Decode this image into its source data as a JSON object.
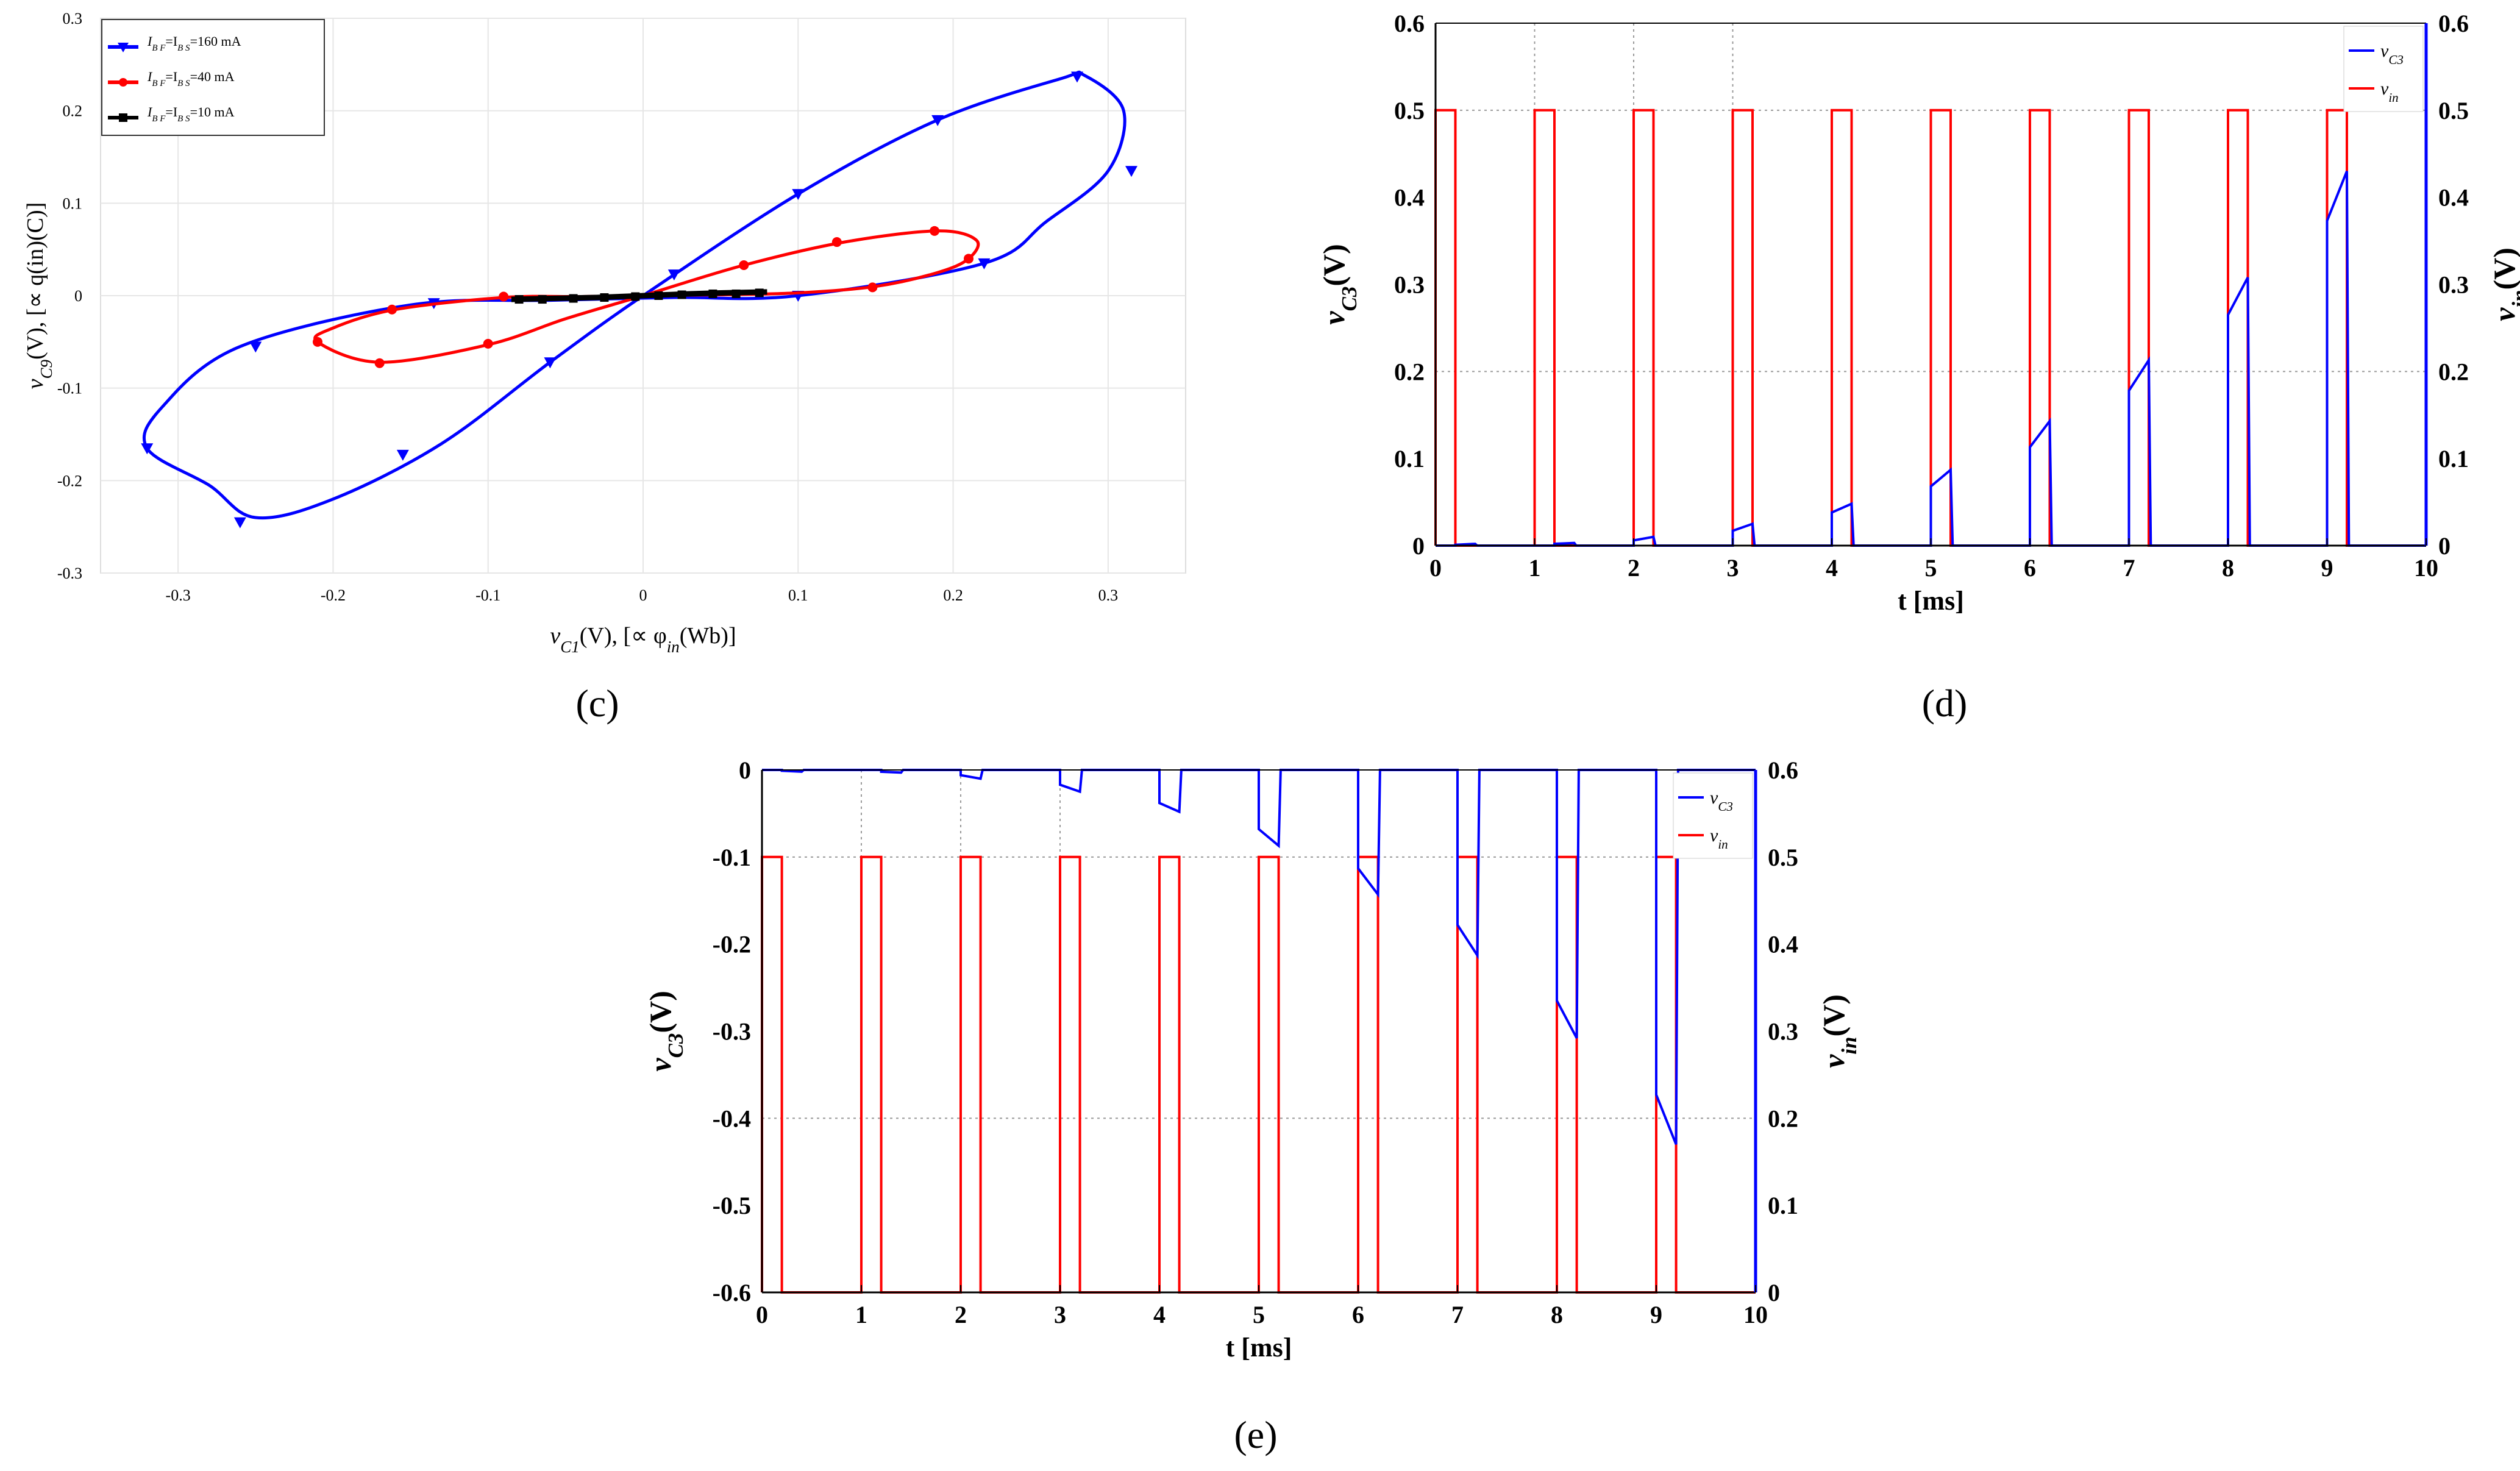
{
  "figure": {
    "panels": [
      {
        "caption": "(c)"
      },
      {
        "caption": "(d)"
      },
      {
        "caption": "(e)"
      }
    ]
  },
  "chart_data": [
    {
      "panel": "c",
      "type": "line",
      "xlabel_parts": [
        "v",
        "C1",
        "(V), [∝ φ",
        "in",
        "(Wb)]"
      ],
      "ylabel_parts": [
        "v",
        "C9",
        "(V), [∝ q(in)(C)]"
      ],
      "xlim": [
        -0.35,
        0.35
      ],
      "ylim": [
        -0.3,
        0.3
      ],
      "xticks": [
        -0.3,
        -0.2,
        -0.1,
        0,
        0.1,
        0.2,
        0.3
      ],
      "xtick_labels": [
        "-0.3",
        "-0.2",
        "-0.1",
        "0",
        "0.1",
        "0.2",
        "0.3"
      ],
      "yticks": [
        -0.3,
        -0.2,
        -0.1,
        0,
        0.1,
        0.2,
        0.3
      ],
      "ytick_labels": [
        "-0.3",
        "-0.2",
        "-0.1",
        "0",
        "0.1",
        "0.2",
        "0.3"
      ],
      "grid": true,
      "legend_position": "top-left",
      "series": [
        {
          "name_parts": [
            "I",
            "B F",
            "=I",
            "B S",
            "=160 mA"
          ],
          "color": "#0000ff",
          "marker": "triangle-down",
          "x": [
            0,
            0.1,
            0.19,
            0.27,
            0.285,
            0.31,
            0.3,
            0.26,
            0.22,
            0.1,
            0.02,
            -0.06,
            -0.15,
            -0.26,
            -0.31,
            -0.32,
            -0.28,
            -0.25,
            -0.2,
            -0.13,
            -0.06,
            0
          ],
          "y": [
            0,
            0.11,
            0.19,
            0.235,
            0.238,
            0.2,
            0.135,
            0.08,
            0.035,
            0,
            -0.002,
            -0.005,
            -0.01,
            -0.055,
            -0.12,
            -0.165,
            -0.205,
            -0.24,
            -0.22,
            -0.16,
            -0.072,
            0
          ],
          "marker_points": [
            [
              0.1,
              0.11
            ],
            [
              0.19,
              0.19
            ],
            [
              0.28,
              0.237
            ],
            [
              0.315,
              0.135
            ],
            [
              0.22,
              0.035
            ],
            [
              0.1,
              0.0
            ],
            [
              -0.135,
              -0.008
            ],
            [
              -0.25,
              -0.055
            ],
            [
              -0.32,
              -0.165
            ],
            [
              -0.26,
              -0.245
            ],
            [
              -0.155,
              -0.172
            ],
            [
              -0.06,
              -0.072
            ],
            [
              0.02,
              0.023
            ]
          ]
        },
        {
          "name_parts": [
            "I",
            "B F",
            "=I",
            "B S",
            "=40 mA"
          ],
          "color": "#ff0000",
          "marker": "circle",
          "x": [
            0,
            0.065,
            0.13,
            0.19,
            0.215,
            0.21,
            0.19,
            0.15,
            0.1,
            0.05,
            0,
            -0.04,
            -0.09,
            -0.16,
            -0.2,
            -0.21,
            -0.17,
            -0.1,
            -0.05,
            0
          ],
          "y": [
            0,
            0.033,
            0.058,
            0.07,
            0.06,
            0.04,
            0.025,
            0.01,
            0.003,
            0.001,
            0,
            -0.001,
            -0.002,
            -0.015,
            -0.035,
            -0.05,
            -0.072,
            -0.053,
            -0.025,
            0
          ],
          "marker_points": [
            [
              0.065,
              0.033
            ],
            [
              0.125,
              0.058
            ],
            [
              0.188,
              0.07
            ],
            [
              0.21,
              0.04
            ],
            [
              0.148,
              0.009
            ],
            [
              -0.09,
              -0.001
            ],
            [
              -0.162,
              -0.015
            ],
            [
              -0.21,
              -0.05
            ],
            [
              -0.17,
              -0.073
            ],
            [
              -0.1,
              -0.052
            ]
          ]
        },
        {
          "name_parts": [
            "I",
            "B F",
            "=I",
            "B S",
            "=10 mA"
          ],
          "color": "#000000",
          "marker": "square",
          "x": [
            -0.085,
            -0.06,
            -0.03,
            0,
            0.03,
            0.05,
            0.08
          ],
          "y": [
            -0.004,
            -0.003,
            -0.002,
            0,
            0.002,
            0.003,
            0.004
          ],
          "marker_points": [
            [
              -0.08,
              -0.004
            ],
            [
              -0.065,
              -0.004
            ],
            [
              -0.045,
              -0.003
            ],
            [
              -0.025,
              -0.002
            ],
            [
              -0.005,
              -0.001
            ],
            [
              0.01,
              0.0
            ],
            [
              0.025,
              0.001
            ],
            [
              0.045,
              0.002
            ],
            [
              0.06,
              0.002
            ],
            [
              0.075,
              0.003
            ]
          ]
        }
      ]
    },
    {
      "panel": "d",
      "type": "line",
      "xlabel": "t [ms]",
      "ylabel_parts": [
        "v",
        "C3",
        "(V)"
      ],
      "y2label_parts": [
        "v",
        "in",
        "(V)"
      ],
      "xlim": [
        0,
        10
      ],
      "ylim": [
        0,
        0.6
      ],
      "y2lim": [
        0,
        0.6
      ],
      "xticks": [
        0,
        1,
        2,
        3,
        4,
        5,
        6,
        7,
        8,
        9,
        10
      ],
      "xtick_labels": [
        "0",
        "1",
        "2",
        "3",
        "4",
        "5",
        "6",
        "7",
        "8",
        "9",
        "10"
      ],
      "yticks": [
        0,
        0.1,
        0.2,
        0.3,
        0.4,
        0.5,
        0.6
      ],
      "ytick_labels": [
        "0",
        "0.1",
        "0.2",
        "0.3",
        "0.4",
        "0.5",
        "0.6"
      ],
      "y2tick_labels": [
        "0",
        "0.1",
        "0.2",
        "0.3",
        "0.4",
        "0.5",
        "0.6"
      ],
      "legend_position": "top-right",
      "series": [
        {
          "name_parts": [
            "v",
            "C3"
          ],
          "color": "#0000ff",
          "pulse_starts": [
            0.2,
            1.2,
            2.0,
            3.0,
            4.0,
            5.0,
            6.0,
            7.0,
            8.0,
            9.0
          ],
          "pulse_width": 0.2,
          "pulse_start_values": [
            0.001,
            0.002,
            0.006,
            0.017,
            0.038,
            0.068,
            0.113,
            0.178,
            0.265,
            0.373
          ],
          "pulse_end_values": [
            0.002,
            0.003,
            0.01,
            0.025,
            0.048,
            0.087,
            0.143,
            0.213,
            0.308,
            0.43
          ]
        },
        {
          "name_parts": [
            "v",
            "in"
          ],
          "color": "#ff0000",
          "pulse_starts": [
            0,
            1,
            2,
            3,
            4,
            5,
            6,
            7,
            8,
            9
          ],
          "pulse_width": 0.2,
          "high": 0.5,
          "low": 0
        }
      ]
    },
    {
      "panel": "e",
      "type": "line",
      "xlabel": "t [ms]",
      "ylabel_parts": [
        "v",
        "C3",
        "(V)"
      ],
      "y2label_parts": [
        "v",
        "in",
        "(V)"
      ],
      "xlim": [
        0,
        10
      ],
      "ylim": [
        -0.6,
        0
      ],
      "y2lim": [
        0,
        0.6
      ],
      "xticks": [
        0,
        1,
        2,
        3,
        4,
        5,
        6,
        7,
        8,
        9,
        10
      ],
      "xtick_labels": [
        "0",
        "1",
        "2",
        "3",
        "4",
        "5",
        "6",
        "7",
        "8",
        "9",
        "10"
      ],
      "yticks": [
        0,
        -0.1,
        -0.2,
        -0.3,
        -0.4,
        -0.5,
        -0.6
      ],
      "ytick_labels": [
        "0",
        "-0.1",
        "-0.2",
        "-0.3",
        "-0.4",
        "-0.5",
        "-0.6"
      ],
      "y2tick_labels": [
        "0.6",
        "0.5",
        "0.4",
        "0.3",
        "0.2",
        "0.1",
        "0"
      ],
      "legend_position": "top-right",
      "series": [
        {
          "name_parts": [
            "v",
            "C3"
          ],
          "color": "#0000ff",
          "pulse_starts": [
            0.2,
            1.2,
            2.0,
            3.0,
            4.0,
            5.0,
            6.0,
            7.0,
            8.0,
            9.0
          ],
          "pulse_width": 0.2,
          "pulse_start_values": [
            -0.001,
            -0.002,
            -0.006,
            -0.017,
            -0.038,
            -0.068,
            -0.113,
            -0.178,
            -0.265,
            -0.373
          ],
          "pulse_end_values": [
            -0.002,
            -0.003,
            -0.01,
            -0.025,
            -0.048,
            -0.087,
            -0.143,
            -0.213,
            -0.308,
            -0.43
          ]
        },
        {
          "name_parts": [
            "v",
            "in"
          ],
          "color": "#ff0000",
          "pulse_starts": [
            0,
            1,
            2,
            3,
            4,
            5,
            6,
            7,
            8,
            9
          ],
          "pulse_width": 0.2,
          "high": 0.5,
          "low": 0
        }
      ]
    }
  ]
}
